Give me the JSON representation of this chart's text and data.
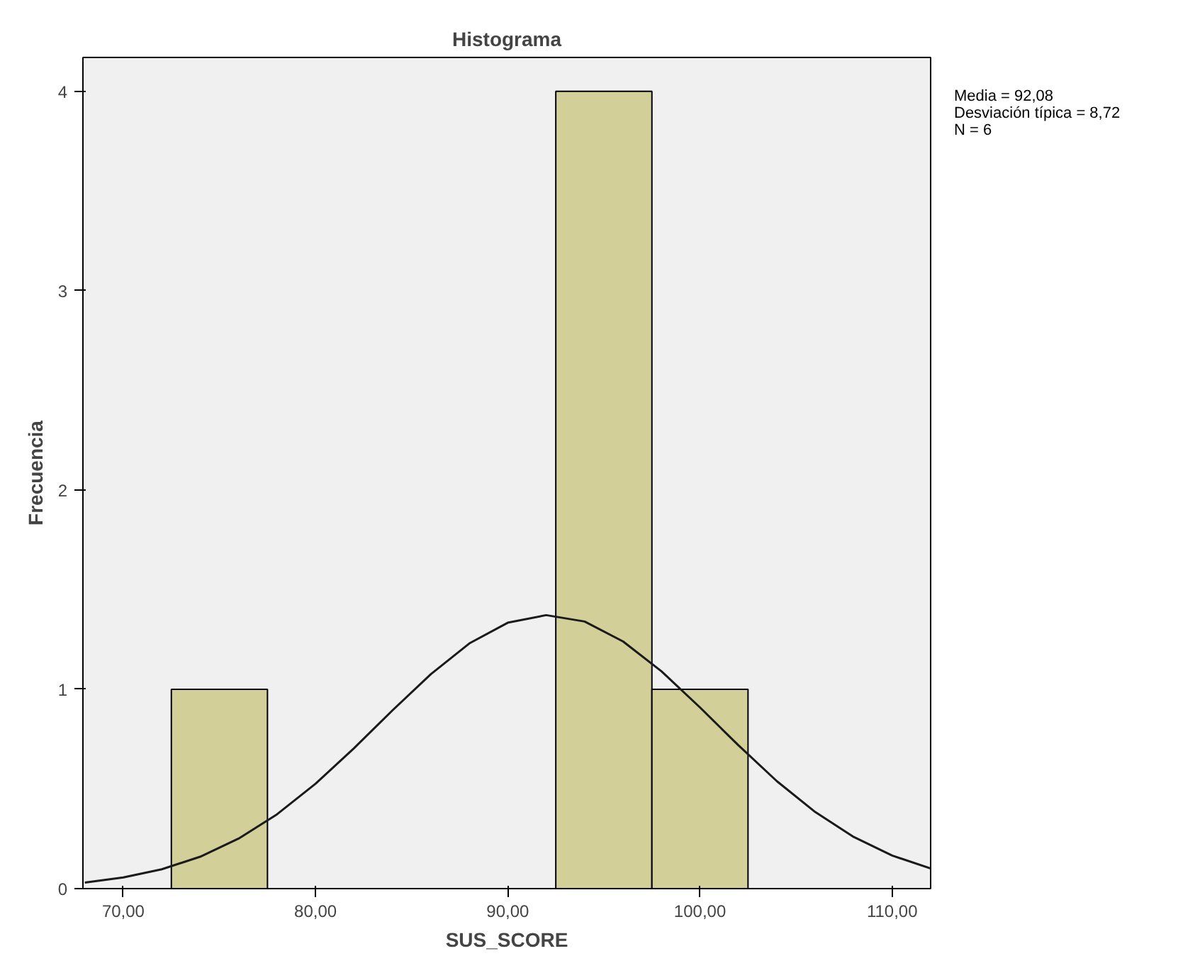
{
  "chart_data": {
    "type": "histogram",
    "title": "Histograma",
    "xlabel": "SUS_SCORE",
    "ylabel": "Frecuencia",
    "bins": [
      72.5,
      77.5,
      82.5,
      87.5,
      92.5,
      97.5,
      102.5
    ],
    "values": [
      1,
      0,
      0,
      0,
      4,
      1
    ],
    "color": "#d3cf99",
    "series": [
      {
        "type": "line",
        "color": "#1a1a1a",
        "x": [
          68,
          70,
          72,
          74,
          76,
          78,
          80,
          82,
          84,
          86,
          88,
          90,
          92,
          94,
          96,
          98,
          100,
          102,
          104,
          106,
          108,
          110,
          112
        ],
        "values": [
          0.03,
          0.056,
          0.097,
          0.16,
          0.251,
          0.373,
          0.526,
          0.704,
          0.894,
          1.076,
          1.23,
          1.334,
          1.372,
          1.34,
          1.24,
          1.09,
          0.909,
          0.719,
          0.539,
          0.384,
          0.259,
          0.166,
          0.101
        ]
      }
    ],
    "xlim": [
      67.9,
      112
    ],
    "ylim": [
      0,
      4.17
    ],
    "xticks": [
      {
        "value": 70,
        "label": "70,00"
      },
      {
        "value": 80,
        "label": "80,00"
      },
      {
        "value": 90,
        "label": "90,00"
      },
      {
        "value": 100,
        "label": "100,00"
      },
      {
        "value": 110,
        "label": "110,00"
      }
    ],
    "yticks": [
      0,
      1,
      2,
      3,
      4
    ],
    "annotations": [
      "Media = 92,08",
      "Desviación típica = 8,72",
      "N = 6"
    ]
  }
}
